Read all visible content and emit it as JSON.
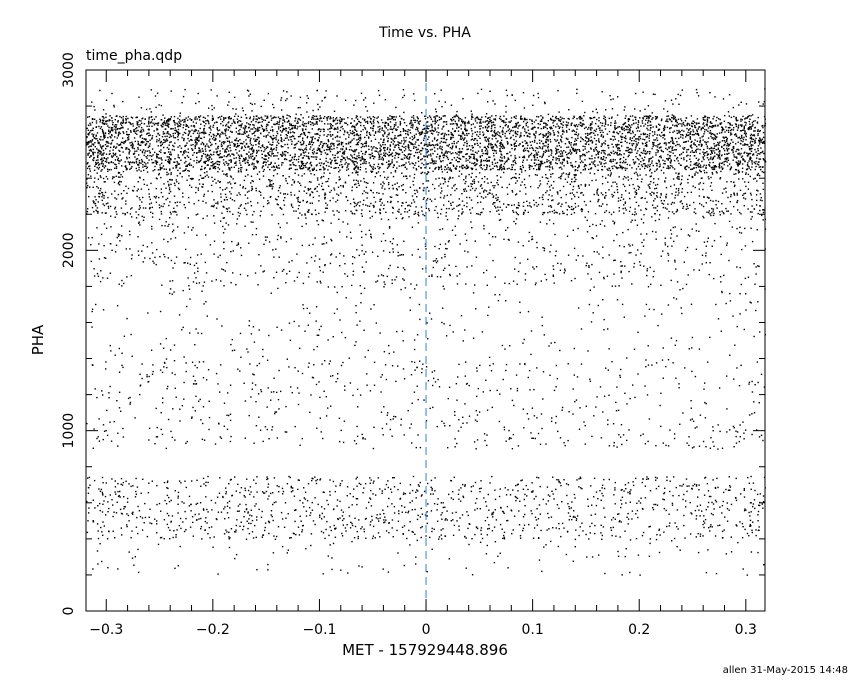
{
  "chart_data": {
    "type": "scatter",
    "title": "Time vs. PHA",
    "subtitle": "time_pha.qdp",
    "xlabel": "MET - 157929448.896",
    "ylabel": "PHA",
    "xlim": [
      -0.319,
      0.318
    ],
    "ylim": [
      0,
      3000
    ],
    "x_ticks": [
      -0.3,
      -0.2,
      -0.1,
      0,
      0.1,
      0.2,
      0.3
    ],
    "x_tick_labels": [
      "−0.3",
      "−0.2",
      "−0.1",
      "0",
      "0.1",
      "0.2",
      "0.3"
    ],
    "x_minor_step": 0.02,
    "y_ticks": [
      0,
      1000,
      2000,
      3000
    ],
    "y_tick_labels": [
      "0",
      "1000",
      "2000",
      "3000"
    ],
    "y_minor_step": 200,
    "grid": false,
    "reference_line": {
      "x": 0,
      "style": "dashed",
      "color": "#3a7fd5"
    },
    "point_color": "#000000",
    "point_density_bands": [
      {
        "pha_range": [
          2450,
          2750
        ],
        "relative_density": 1.0
      },
      {
        "pha_range": [
          2750,
          2900
        ],
        "relative_density": 0.08
      },
      {
        "pha_range": [
          2200,
          2450
        ],
        "relative_density": 0.35
      },
      {
        "pha_range": [
          1800,
          2200
        ],
        "relative_density": 0.1
      },
      {
        "pha_range": [
          1400,
          1800
        ],
        "relative_density": 0.035
      },
      {
        "pha_range": [
          900,
          1400
        ],
        "relative_density": 0.07
      },
      {
        "pha_range": [
          400,
          750
        ],
        "relative_density": 0.2
      },
      {
        "pha_range": [
          200,
          400
        ],
        "relative_density": 0.03
      }
    ]
  },
  "footer": "allen 31-May-2015 14:48"
}
